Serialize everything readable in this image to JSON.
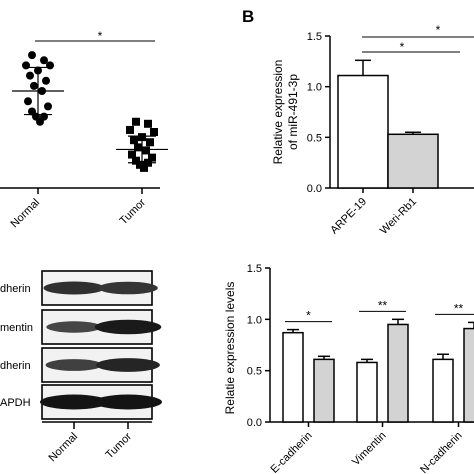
{
  "panel_b_letter": "B",
  "blot": {
    "rows": [
      {
        "label": "dherin",
        "bands": [
          0.75,
          0.7
        ]
      },
      {
        "label": "mentin",
        "bands": [
          0.55,
          0.95
        ]
      },
      {
        "label": "dherin",
        "bands": [
          0.6,
          0.85
        ]
      },
      {
        "label": "APDH",
        "bands": [
          1.0,
          1.0
        ]
      }
    ],
    "lanes": [
      "Normal",
      "Tumor"
    ]
  },
  "chart_data": [
    {
      "id": "scatter",
      "type": "scatter",
      "categories": [
        "Normal",
        "Tumor"
      ],
      "series": [
        {
          "marker": "circle",
          "x": "Normal",
          "mean": 1.0,
          "sd_low": 0.77,
          "sd_high": 1.23,
          "values": [
            1.35,
            1.3,
            1.25,
            1.25,
            1.2,
            1.15,
            1.1,
            1.05,
            1.0,
            0.9,
            0.85,
            0.8,
            0.75,
            0.75,
            0.7
          ]
        },
        {
          "marker": "square",
          "x": "Tumor",
          "mean": 0.43,
          "sd_low": 0.3,
          "sd_high": 0.56,
          "values": [
            0.7,
            0.68,
            0.62,
            0.6,
            0.55,
            0.52,
            0.5,
            0.45,
            0.42,
            0.38,
            0.35,
            0.32,
            0.3,
            0.28,
            0.25
          ]
        }
      ],
      "annotation": "*"
    },
    {
      "id": "bar_b",
      "type": "bar",
      "categories": [
        "ARPE-19",
        "Weri-Rb1"
      ],
      "values": [
        1.11,
        0.53
      ],
      "errors": [
        0.15,
        0.02
      ],
      "ylabel_line1": "Relative expression",
      "ylabel_line2": "of miR-491-3p",
      "yticks": [
        "0.0",
        "0.5",
        "1.0",
        "1.5"
      ],
      "ylim": [
        0,
        1.5
      ],
      "annotations": [
        "*",
        "*"
      ]
    },
    {
      "id": "bar_c",
      "type": "bar",
      "categories": [
        "E-cadherin",
        "Vimentin",
        "N-cadherin"
      ],
      "series": [
        {
          "color": "#ffffff",
          "values": [
            0.87,
            0.58,
            0.61
          ],
          "errors": [
            0.03,
            0.03,
            0.05
          ]
        },
        {
          "color": "#d3d3d3",
          "values": [
            0.61,
            0.95,
            0.91
          ],
          "errors": [
            0.03,
            0.05,
            0.06
          ]
        }
      ],
      "ylabel": "Relatie expression levels",
      "yticks": [
        "0.0",
        "0.5",
        "1.0",
        "1.5"
      ],
      "ylim": [
        0,
        1.5
      ],
      "annotations": [
        "*",
        "**",
        "**"
      ]
    }
  ]
}
